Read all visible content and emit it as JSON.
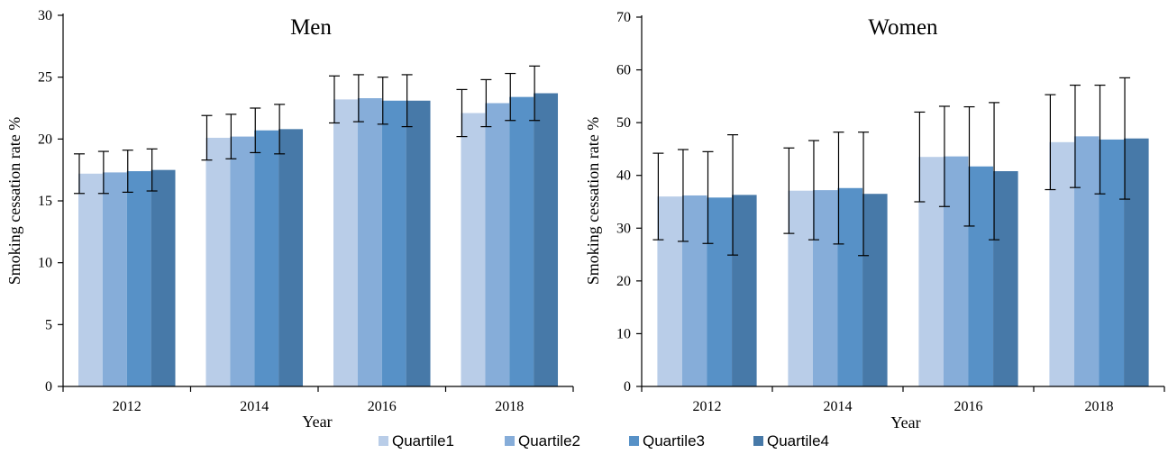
{
  "chart_data": [
    {
      "type": "bar",
      "title": "Men",
      "xlabel": "Year",
      "ylabel": "Smoking cessation rate %",
      "ylim": [
        0,
        30
      ],
      "yticks": [
        0,
        5,
        10,
        15,
        20,
        25,
        30
      ],
      "categories": [
        "2012",
        "2014",
        "2016",
        "2018"
      ],
      "series": [
        {
          "name": "Quartile1",
          "color": "#b9cde8",
          "values": [
            17.2,
            20.1,
            23.2,
            22.1
          ],
          "error": [
            1.6,
            1.8,
            1.9,
            1.9
          ]
        },
        {
          "name": "Quartile2",
          "color": "#86add9",
          "values": [
            17.3,
            20.2,
            23.3,
            22.9
          ],
          "error": [
            1.7,
            1.8,
            1.9,
            1.9
          ]
        },
        {
          "name": "Quartile3",
          "color": "#5791c7",
          "values": [
            17.4,
            20.7,
            23.1,
            23.4
          ],
          "error": [
            1.7,
            1.8,
            1.9,
            1.9
          ]
        },
        {
          "name": "Quartile4",
          "color": "#4779a8",
          "values": [
            17.5,
            20.8,
            23.1,
            23.7
          ],
          "error": [
            1.7,
            2.0,
            2.1,
            2.2
          ]
        }
      ]
    },
    {
      "type": "bar",
      "title": "Women",
      "xlabel": "Year",
      "ylabel": "Smoking cessation rate %",
      "ylim": [
        0,
        70
      ],
      "yticks": [
        0,
        10,
        20,
        30,
        40,
        50,
        60,
        70
      ],
      "categories": [
        "2012",
        "2014",
        "2016",
        "2018"
      ],
      "series": [
        {
          "name": "Quartile1",
          "color": "#b9cde8",
          "values": [
            36.0,
            37.1,
            43.5,
            46.3
          ],
          "error": [
            8.2,
            8.1,
            8.5,
            9.0
          ]
        },
        {
          "name": "Quartile2",
          "color": "#86add9",
          "values": [
            36.2,
            37.2,
            43.6,
            47.4
          ],
          "error": [
            8.7,
            9.4,
            9.5,
            9.7
          ]
        },
        {
          "name": "Quartile3",
          "color": "#5791c7",
          "values": [
            35.8,
            37.6,
            41.7,
            46.8
          ],
          "error": [
            8.7,
            10.6,
            11.3,
            10.3
          ]
        },
        {
          "name": "Quartile4",
          "color": "#4779a8",
          "values": [
            36.3,
            36.5,
            40.8,
            47.0
          ],
          "error": [
            11.4,
            11.7,
            13.0,
            11.5
          ]
        }
      ]
    }
  ],
  "legend": {
    "items": [
      {
        "label": "Quartile1",
        "color": "#b9cde8"
      },
      {
        "label": "Quartile2",
        "color": "#86add9"
      },
      {
        "label": "Quartile3",
        "color": "#5791c7"
      },
      {
        "label": "Quartile4",
        "color": "#4779a8"
      }
    ]
  }
}
